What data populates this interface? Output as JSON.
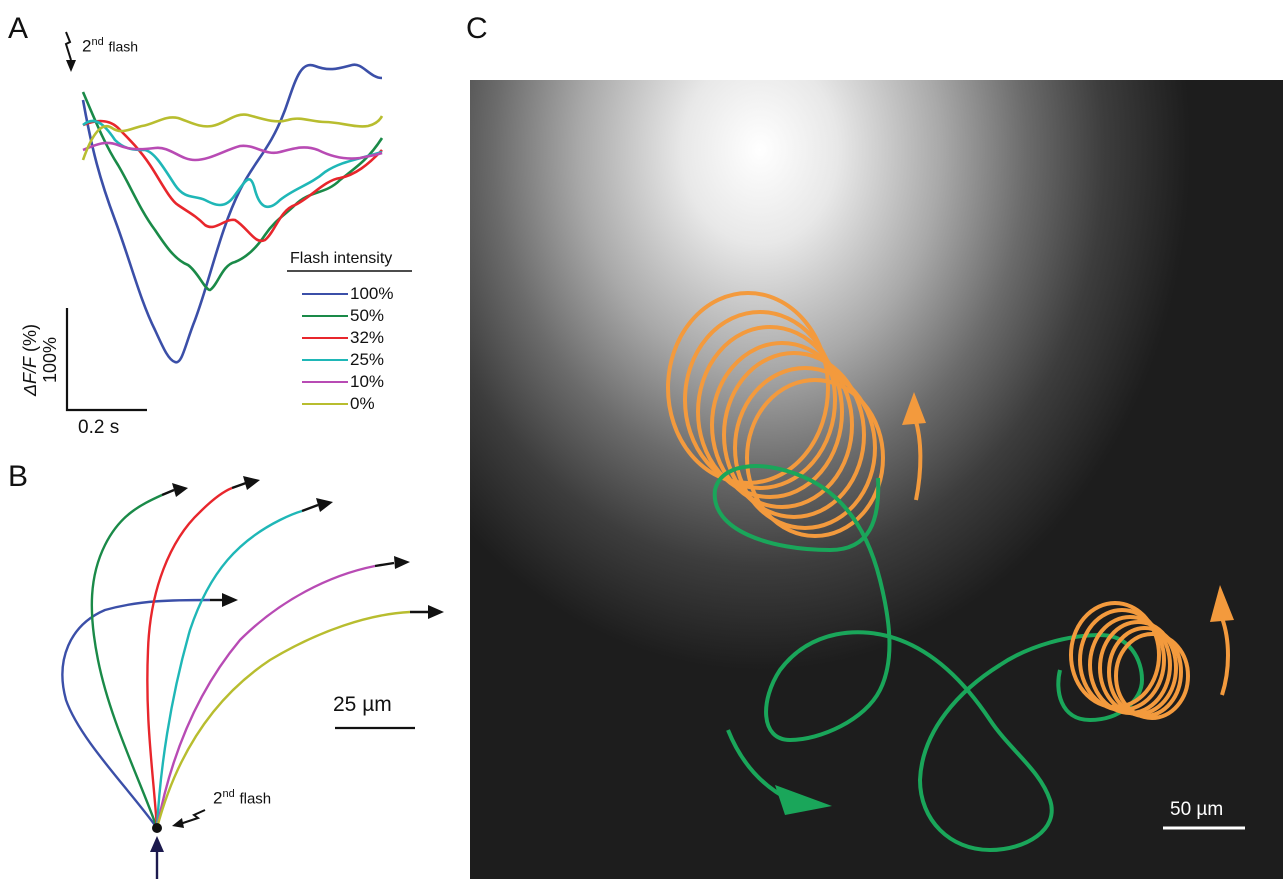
{
  "panels": {
    "a": {
      "letter": "A",
      "flash_label": "2",
      "flash_sup": "nd",
      "flash_word": "flash",
      "scale_y_text_italic_a": "ΔF/F",
      "scale_y_text_unit": "(%)",
      "scale_y_value": "100%",
      "scale_x_value": "0.2 s",
      "legend": {
        "title": "Flash intensity",
        "items": [
          {
            "label": "100%",
            "color": "#3b4fa8"
          },
          {
            "label": "50%",
            "color": "#1a8a48"
          },
          {
            "label": "32%",
            "color": "#e8262c"
          },
          {
            "label": "25%",
            "color": "#1fb7b7"
          },
          {
            "label": "10%",
            "color": "#b84bb4"
          },
          {
            "label": "0%",
            "color": "#b8bd2f"
          }
        ]
      }
    },
    "b": {
      "letter": "B",
      "scale_value": "25 µm",
      "flash_label": "2",
      "flash_sup": "nd",
      "flash_word": "flash"
    },
    "c": {
      "letter": "C",
      "scale_value": "50 µm",
      "colors": {
        "orange": "#f39a3d",
        "green": "#1aa65a"
      }
    }
  }
}
